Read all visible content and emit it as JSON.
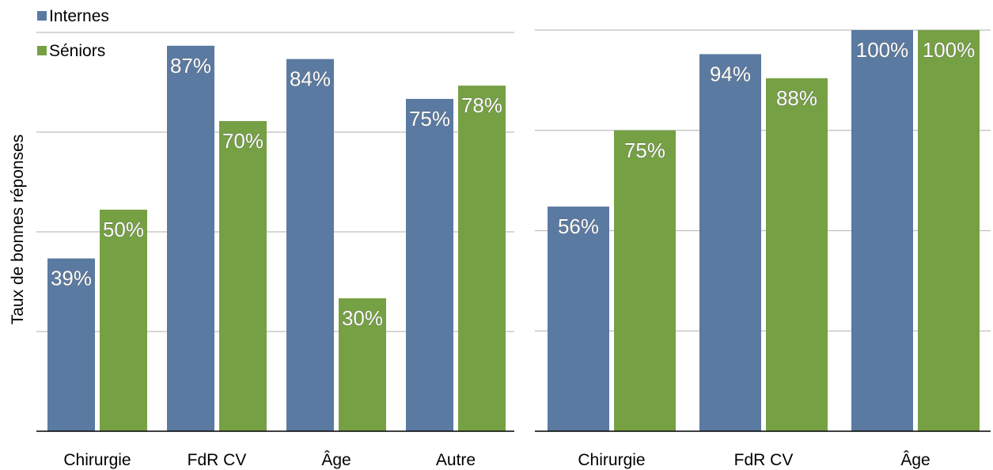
{
  "chart_data": [
    {
      "type": "bar",
      "categories": [
        "Chirurgie",
        "FdR CV",
        "Âge",
        "Autre"
      ],
      "series": [
        {
          "name": "Internes",
          "values": [
            39,
            87,
            84,
            75
          ],
          "labels": [
            "39%",
            "87%",
            "84%",
            "75%"
          ],
          "color": "#5b7aa1"
        },
        {
          "name": "Séniors",
          "values": [
            50,
            70,
            30,
            78
          ],
          "labels": [
            "50%",
            "70%",
            "30%",
            "78%"
          ],
          "color": "#76a044"
        }
      ],
      "ylabel": "Taux de bonnes réponses",
      "ylim": [
        0,
        90
      ],
      "grid": true,
      "legend": "top-left"
    },
    {
      "type": "bar",
      "categories": [
        "Chirurgie",
        "FdR CV",
        "Âge"
      ],
      "series": [
        {
          "name": "Internes",
          "values": [
            56,
            94,
            100
          ],
          "labels": [
            "56%",
            "94%",
            "100%"
          ],
          "color": "#5b7aa1"
        },
        {
          "name": "Séniors",
          "values": [
            75,
            88,
            100
          ],
          "labels": [
            "75%",
            "88%",
            "100%"
          ],
          "color": "#76a044"
        }
      ],
      "ylim": [
        0,
        100
      ],
      "grid": true
    }
  ]
}
